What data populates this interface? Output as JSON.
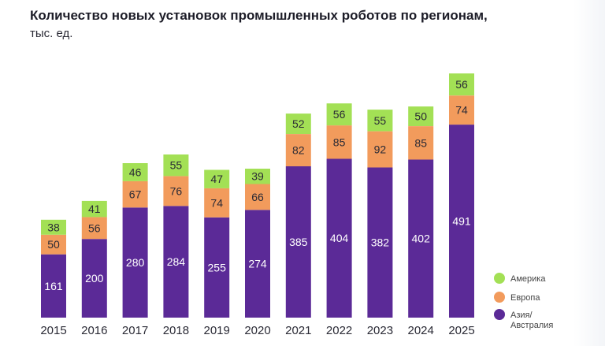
{
  "title": "Количество новых установок промышленных роботов по регионам,",
  "subtitle": "тыс. ед.",
  "colors": {
    "asia": "#5b2a97",
    "europe": "#f29b5c",
    "america": "#a3e055",
    "text_light": "#ffffff",
    "text_dark": "#2a2a35"
  },
  "chart_data": {
    "type": "bar",
    "stacked": true,
    "categories": [
      "2015",
      "2016",
      "2017",
      "2018",
      "2019",
      "2020",
      "2021",
      "2022",
      "2023",
      "2024",
      "2025"
    ],
    "series": [
      {
        "name": "Азия/ Австралия",
        "key": "asia",
        "values": [
          161,
          200,
          280,
          284,
          255,
          274,
          385,
          404,
          382,
          402,
          491
        ]
      },
      {
        "name": "Европа",
        "key": "europe",
        "values": [
          50,
          56,
          67,
          76,
          74,
          66,
          82,
          85,
          92,
          85,
          74
        ]
      },
      {
        "name": "Америка",
        "key": "america",
        "values": [
          38,
          41,
          46,
          55,
          47,
          39,
          52,
          56,
          55,
          50,
          56
        ]
      }
    ],
    "legend": [
      {
        "label": "Америка",
        "key": "america"
      },
      {
        "label": "Европа",
        "key": "europe"
      },
      {
        "label": "Азия/",
        "label2": "Австралия",
        "key": "asia"
      }
    ],
    "legend_position": "bottom-right",
    "grid": false
  }
}
